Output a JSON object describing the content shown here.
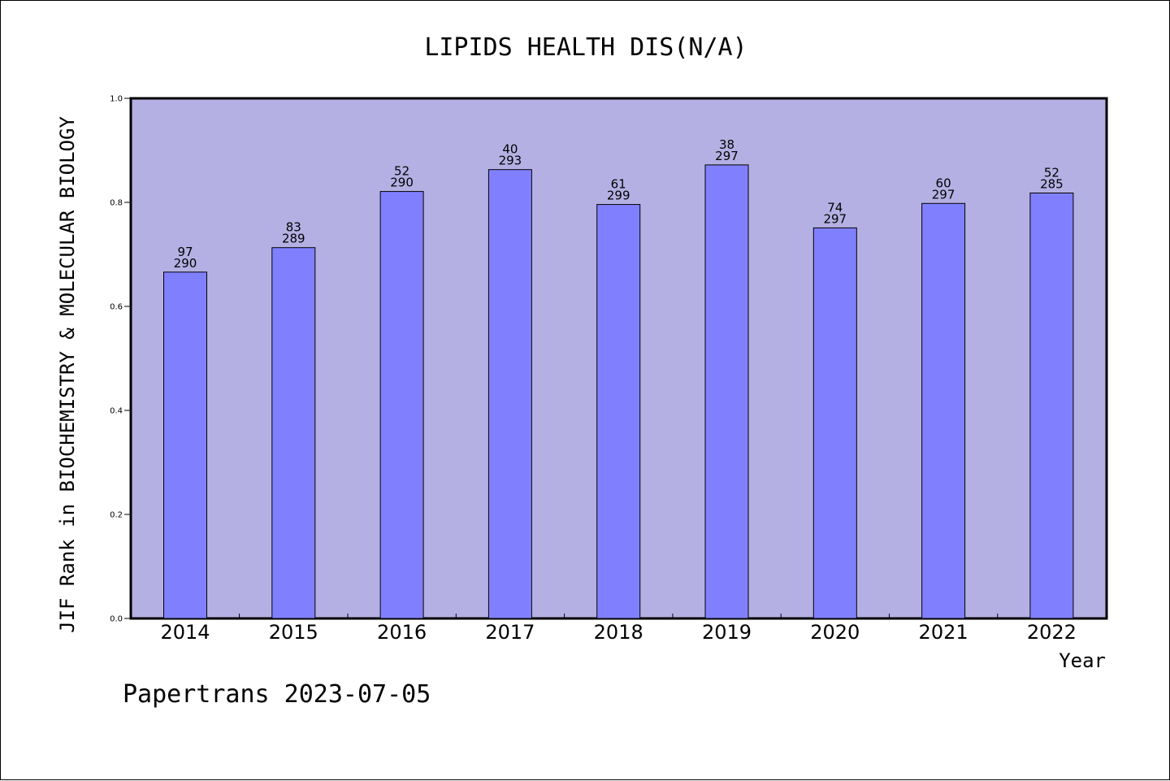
{
  "chart_data": {
    "type": "bar",
    "title": "LIPIDS HEALTH DIS(N/A)",
    "ylabel": "JIF Rank in BIOCHEMISTRY & MOLECULAR BIOLOGY",
    "xlabel": "Year",
    "footer": "Papertrans 2023-07-05",
    "categories": [
      "2014",
      "2015",
      "2016",
      "2017",
      "2018",
      "2019",
      "2020",
      "2021",
      "2022"
    ],
    "values": [
      0.666,
      0.713,
      0.821,
      0.863,
      0.796,
      0.872,
      0.751,
      0.798,
      0.818
    ],
    "ranks": [
      "97",
      "83",
      "52",
      "40",
      "61",
      "38",
      "74",
      "60",
      "52"
    ],
    "totals": [
      "290",
      "289",
      "290",
      "293",
      "299",
      "297",
      "297",
      "297",
      "285"
    ],
    "yticks": [
      "0.0",
      "0.2",
      "0.4",
      "0.6",
      "0.8",
      "1.0"
    ],
    "ylim": [
      0,
      1
    ],
    "grid": false,
    "colors": {
      "plot_background": "#b5b0e3",
      "bar_fill": "#8080ff",
      "bar_stroke": "#000000"
    }
  }
}
